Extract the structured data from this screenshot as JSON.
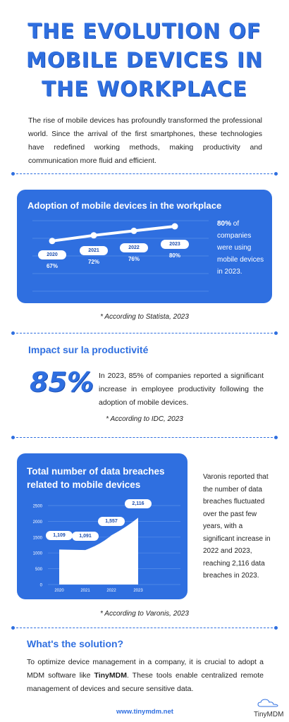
{
  "title": {
    "line1": "The Evolution of",
    "line2": "Mobile Devices in",
    "line3": "the Workplace"
  },
  "intro": "The rise of mobile devices has profoundly transformed the professional world. Since the arrival of the first smartphones, these technologies have redefined working methods, making productivity and communication more fluid and efficient.",
  "adoption": {
    "heading": "Adoption of mobile devices in the workplace",
    "highlight": "80%",
    "side_text_rest": " of companies were using mobile devices in 2023.",
    "source": "* According to Statista, 2023"
  },
  "productivity": {
    "heading": "Impact sur la productivité",
    "big_value": "85%",
    "text": "In 2023, 85% of companies reported a significant increase in employee productivity following the adoption of mobile devices.",
    "source": "* According to IDC, 2023"
  },
  "breaches": {
    "heading_line1": "Total number of data breaches",
    "heading_line2": "related to mobile devices",
    "side_text": "Varonis reported that the number of data breaches fluctuated over the past few years, with a significant increase in 2022 and 2023, reaching 2,116 data breaches in 2023.",
    "source": "* According to Varonis, 2023"
  },
  "solution": {
    "heading": "What's the solution?",
    "text_before": "To optimize device management in a company, it is crucial to adopt a MDM software like ",
    "brand": "TinyMDM",
    "text_after": ". These tools enable centralized remote management of devices and secure sensitive data."
  },
  "footer": {
    "url": "www.tinymdm.net",
    "logo": "TinyMDM"
  },
  "colors": {
    "accent": "#2f6fe0",
    "card_text": "#ffffff"
  },
  "chart_data": [
    {
      "type": "line",
      "title": "Adoption of mobile devices in the workplace",
      "categories": [
        "2020",
        "2021",
        "2022",
        "2023"
      ],
      "values": [
        67,
        72,
        76,
        80
      ],
      "value_labels": [
        "67%",
        "72%",
        "76%",
        "80%"
      ],
      "grid": true
    },
    {
      "type": "area",
      "title": "Total number of data breaches related to mobile devices",
      "categories": [
        "2020",
        "2021",
        "2022",
        "2023"
      ],
      "values": [
        1109,
        1091,
        1557,
        2116
      ],
      "value_labels": [
        "1,109",
        "1,091",
        "1,557",
        "2,116"
      ],
      "ylim": [
        0,
        2500
      ],
      "yticks": [
        "0",
        "500",
        "1000",
        "1500",
        "2000",
        "2500"
      ],
      "grid": true
    }
  ]
}
